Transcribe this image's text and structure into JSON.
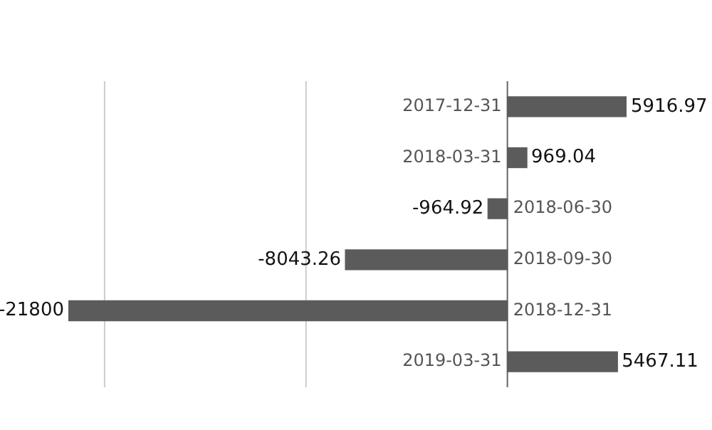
{
  "chart_data": {
    "type": "bar",
    "orientation": "horizontal",
    "categories": [
      "2017-12-31",
      "2018-03-31",
      "2018-06-30",
      "2018-09-30",
      "2018-12-31",
      "2019-03-31"
    ],
    "values": [
      5916.97,
      969.04,
      -964.92,
      -8043.26,
      -21800,
      5467.11
    ],
    "color": "#5b5b5b",
    "ref_lines": [
      {
        "axis": "x",
        "value": -20000,
        "color": "#cccccc"
      },
      {
        "axis": "x",
        "value": -10000,
        "color": "#cccccc"
      }
    ],
    "data_labels": true
  }
}
